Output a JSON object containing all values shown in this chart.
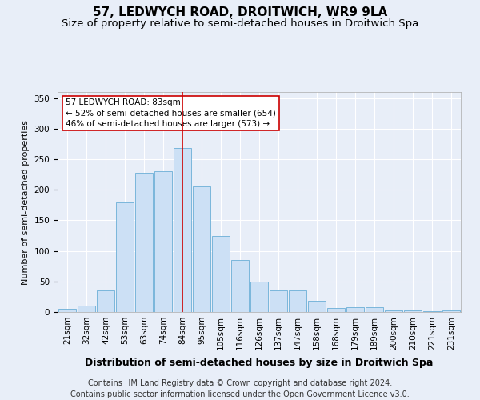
{
  "title": "57, LEDWYCH ROAD, DROITWICH, WR9 9LA",
  "subtitle": "Size of property relative to semi-detached houses in Droitwich Spa",
  "xlabel": "Distribution of semi-detached houses by size in Droitwich Spa",
  "ylabel": "Number of semi-detached properties",
  "footer1": "Contains HM Land Registry data © Crown copyright and database right 2024.",
  "footer2": "Contains public sector information licensed under the Open Government Licence v3.0.",
  "categories": [
    "21sqm",
    "32sqm",
    "42sqm",
    "53sqm",
    "63sqm",
    "74sqm",
    "84sqm",
    "95sqm",
    "105sqm",
    "116sqm",
    "126sqm",
    "137sqm",
    "147sqm",
    "158sqm",
    "168sqm",
    "179sqm",
    "189sqm",
    "200sqm",
    "210sqm",
    "221sqm",
    "231sqm"
  ],
  "values": [
    5,
    10,
    35,
    180,
    228,
    230,
    268,
    205,
    125,
    85,
    50,
    35,
    35,
    18,
    7,
    8,
    8,
    3,
    2,
    1,
    2
  ],
  "bar_color": "#cce0f5",
  "bar_edge_color": "#6aaed6",
  "vline_color": "#cc0000",
  "vline_index": 6,
  "annotation_text": "57 LEDWYCH ROAD: 83sqm\n← 52% of semi-detached houses are smaller (654)\n46% of semi-detached houses are larger (573) →",
  "annotation_box_facecolor": "#ffffff",
  "annotation_box_edgecolor": "#cc0000",
  "ylim": [
    0,
    360
  ],
  "background_color": "#e8eef8",
  "plot_background": "#e8eef8",
  "grid_color": "#ffffff",
  "title_fontsize": 11,
  "subtitle_fontsize": 9.5,
  "xlabel_fontsize": 9,
  "ylabel_fontsize": 8,
  "tick_fontsize": 7.5,
  "annotation_fontsize": 7.5,
  "footer_fontsize": 7
}
